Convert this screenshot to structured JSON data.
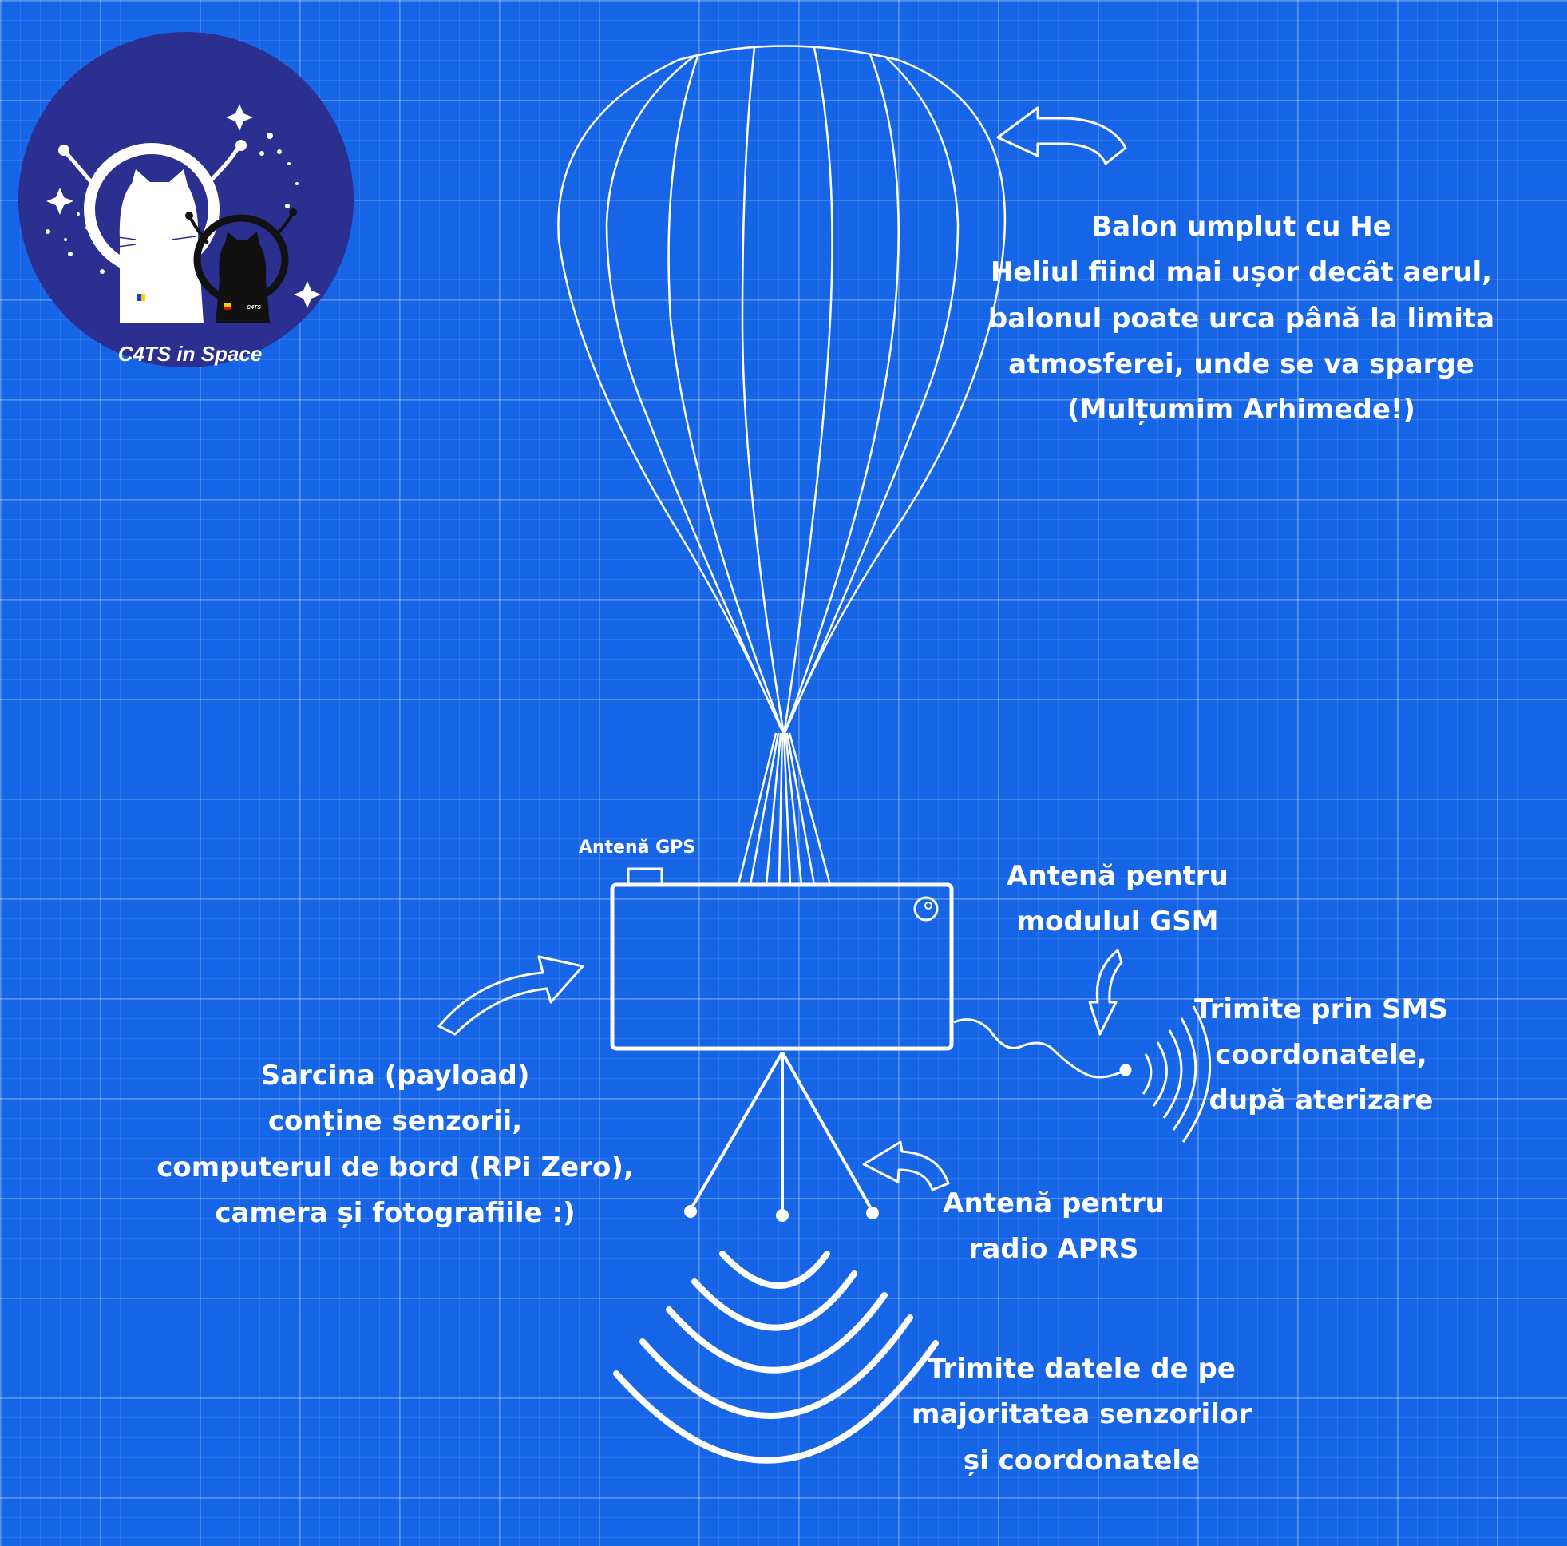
{
  "logo": {
    "title": "C4TS in Space",
    "tag_left": "C4TS",
    "tag_right": "C4TS"
  },
  "balloon": {
    "lines": [
      "Balon umplut cu He",
      "Heliul fiind mai ușor decât aerul,",
      "balonul poate urca până la limita",
      "atmosferei, unde se va sparge",
      "(Mulțumim Arhimede!)"
    ]
  },
  "payload": {
    "lines": [
      "Sarcina (payload)",
      "conține senzorii,",
      "computerul de bord (RPi Zero),",
      "camera și fotografiile :)"
    ]
  },
  "gps": {
    "label": "Antenă GPS"
  },
  "gsm": {
    "antenna_lines": [
      "Antenă pentru",
      "modulul GSM"
    ],
    "sms_lines": [
      "Trimite prin SMS",
      "coordonatele,",
      "după aterizare"
    ]
  },
  "aprs": {
    "antenna_lines": [
      "Antenă pentru",
      "radio APRS"
    ],
    "data_lines": [
      "Trimite datele de pe",
      "majoritatea senzorilor",
      "și coordonatele"
    ]
  },
  "colors": {
    "background": "#1565e6",
    "ink": "#ffffff",
    "logo_disc": "#2b2f8f"
  }
}
